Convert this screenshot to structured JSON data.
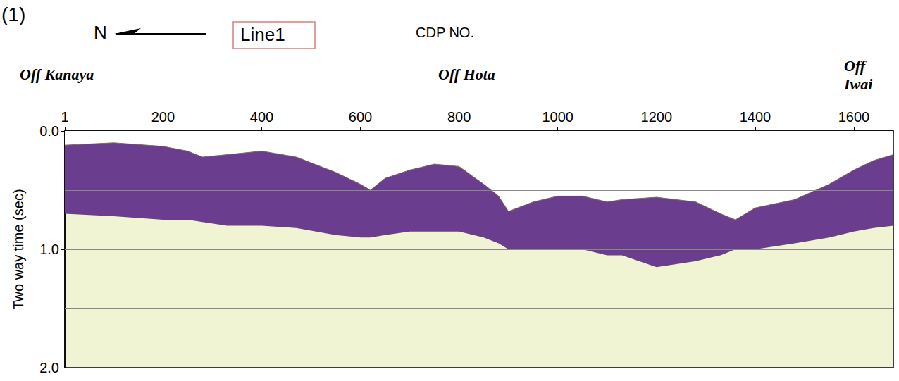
{
  "chart_data": {
    "type": "area",
    "title": "Line1",
    "panel": "(1)",
    "north": "N",
    "x_label": "CDP NO.",
    "y_label": "Two way time (sec)",
    "annotations": [
      "Off Kanaya",
      "Off Hota",
      "Off Iwai"
    ],
    "x": [
      1,
      100,
      200,
      250,
      280,
      330,
      400,
      470,
      550,
      600,
      620,
      650,
      700,
      750,
      800,
      850,
      880,
      900,
      950,
      1000,
      1050,
      1100,
      1130,
      1200,
      1280,
      1330,
      1360,
      1400,
      1480,
      1550,
      1600,
      1640,
      1680
    ],
    "series": [
      {
        "color": "#6a3d8f",
        "values": [
          0.7,
          0.72,
          0.75,
          0.75,
          0.77,
          0.8,
          0.8,
          0.82,
          0.88,
          0.9,
          0.9,
          0.88,
          0.85,
          0.85,
          0.85,
          0.9,
          0.95,
          1.0,
          1.0,
          1.0,
          1.0,
          1.05,
          1.05,
          1.15,
          1.1,
          1.05,
          1.0,
          1.0,
          0.95,
          0.9,
          0.85,
          0.82,
          0.8
        ]
      },
      {
        "color": "#ffffff",
        "values": [
          0.12,
          0.1,
          0.13,
          0.17,
          0.22,
          0.2,
          0.17,
          0.22,
          0.35,
          0.45,
          0.5,
          0.4,
          0.33,
          0.28,
          0.3,
          0.45,
          0.55,
          0.68,
          0.6,
          0.55,
          0.55,
          0.6,
          0.58,
          0.56,
          0.6,
          0.7,
          0.75,
          0.65,
          0.58,
          0.45,
          0.33,
          0.25,
          0.2
        ]
      }
    ],
    "xlim": [
      1,
      1680
    ],
    "xticks": [
      1,
      200,
      400,
      600,
      800,
      1000,
      1200,
      1400,
      1600
    ],
    "ylim": [
      0,
      2
    ],
    "yticks": [
      {
        "value": 0,
        "label": "0.0"
      },
      {
        "value": 1,
        "label": "1.0"
      },
      {
        "value": 2,
        "label": "2.0"
      }
    ],
    "grid": true,
    "grid_lines": [
      0.5,
      1.0,
      1.5
    ],
    "tick_labels": true
  }
}
